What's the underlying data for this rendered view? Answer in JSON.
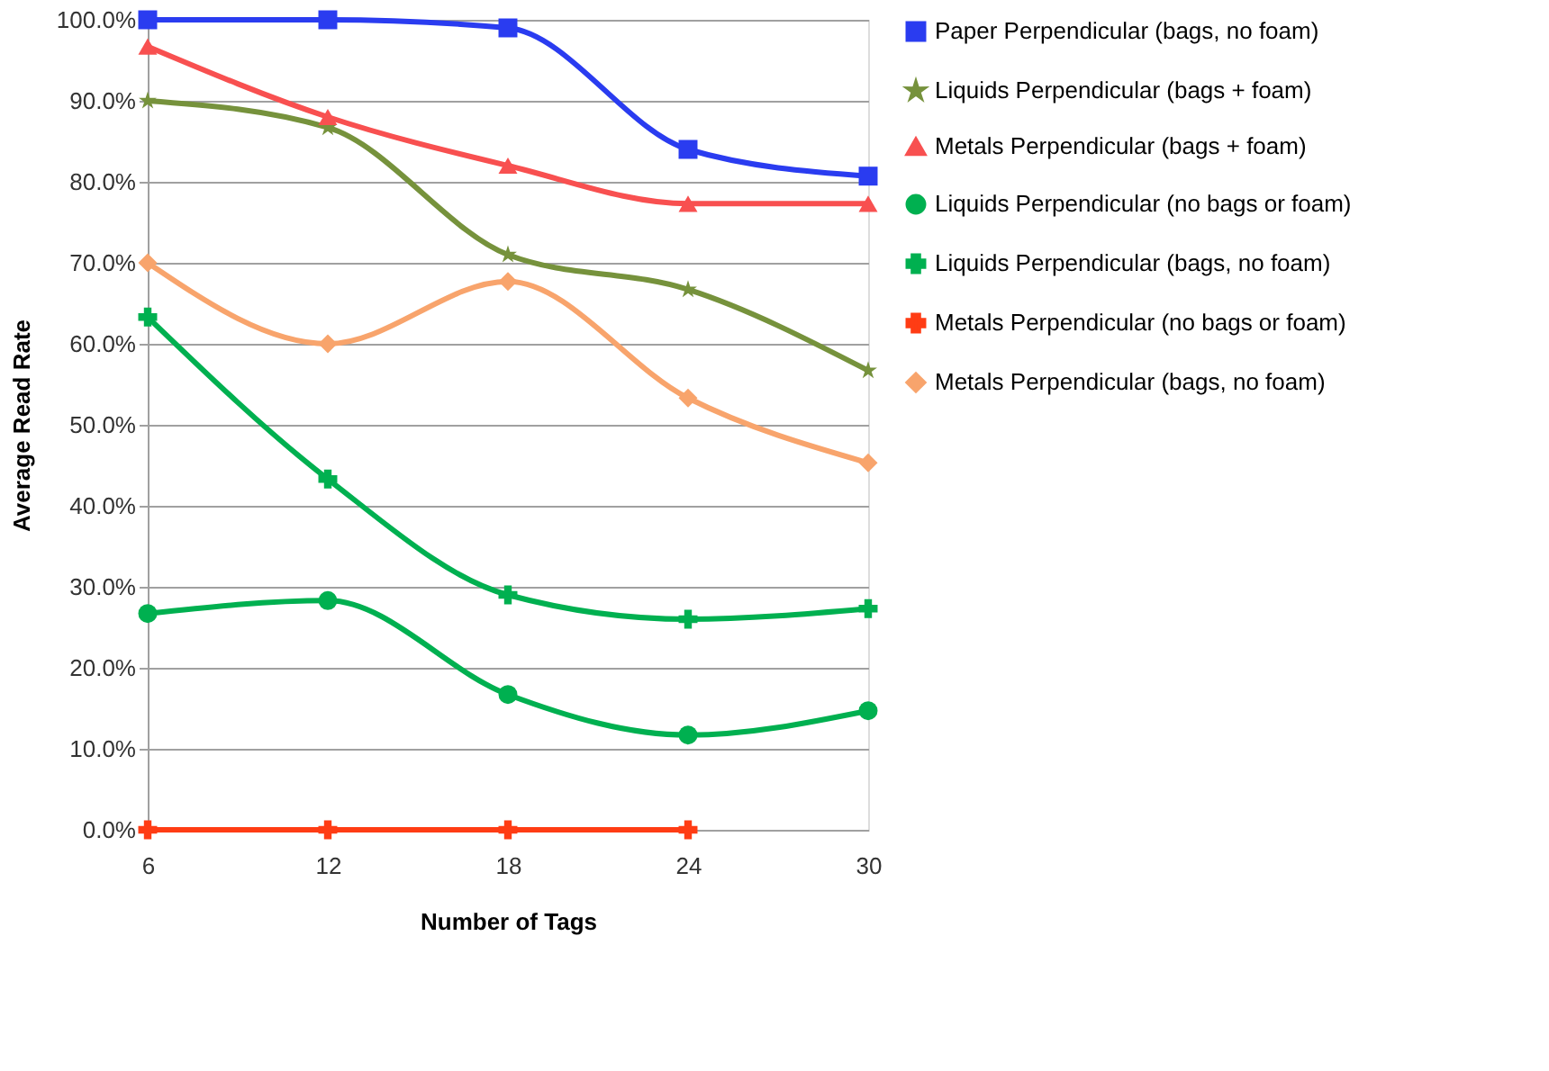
{
  "chart_data": {
    "type": "line",
    "xlabel": "Number of Tags",
    "ylabel": "Average Read Rate",
    "categories": [
      "6",
      "12",
      "18",
      "24",
      "30"
    ],
    "series": [
      {
        "name": "Paper Perpendicular (bags, no foam)",
        "color": "#2a3cf0",
        "marker": "square",
        "values": [
          100,
          100,
          99,
          84,
          80.7
        ]
      },
      {
        "name": "Liquids Perpendicular (bags + foam)",
        "color": "#76923c",
        "marker": "star",
        "values": [
          90,
          86.7,
          71,
          66.7,
          56.7
        ]
      },
      {
        "name": "Metals Perpendicular (bags + foam)",
        "color": "#f85050",
        "marker": "triangle",
        "values": [
          96.7,
          88,
          82,
          77.3,
          77.3
        ]
      },
      {
        "name": "Liquids Perpendicular (no bags or foam)",
        "color": "#00b050",
        "marker": "circle",
        "values": [
          26.7,
          28.3,
          16.7,
          11.7,
          14.7
        ]
      },
      {
        "name": "Liquids Perpendicular (bags, no foam)",
        "color": "#00b050",
        "marker": "cross",
        "values": [
          63.3,
          43.3,
          29,
          26,
          27.3
        ]
      },
      {
        "name": "Metals Perpendicular (no bags or foam)",
        "color": "#ff3c14",
        "marker": "cross",
        "values": [
          0,
          0,
          0,
          0,
          null
        ]
      },
      {
        "name": "Metals Perpendicular (bags, no foam)",
        "color": "#f8a46c",
        "marker": "diamond",
        "values": [
          70,
          60,
          67.7,
          53.3,
          45.3
        ]
      }
    ],
    "ylim": [
      0,
      100
    ],
    "yticks": [
      {
        "value": 0,
        "label": "0.0%"
      },
      {
        "value": 10,
        "label": "10.0%"
      },
      {
        "value": 20,
        "label": "20.0%"
      },
      {
        "value": 30,
        "label": "30.0%"
      },
      {
        "value": 40,
        "label": "40.0%"
      },
      {
        "value": 50,
        "label": "50.0%"
      },
      {
        "value": 60,
        "label": "60.0%"
      },
      {
        "value": 70,
        "label": "70.0%"
      },
      {
        "value": 80,
        "label": "80.0%"
      },
      {
        "value": 90,
        "label": "90.0%"
      },
      {
        "value": 100,
        "label": "100.0%"
      }
    ],
    "grid": "y",
    "legend": "right",
    "line_style": "solid"
  }
}
